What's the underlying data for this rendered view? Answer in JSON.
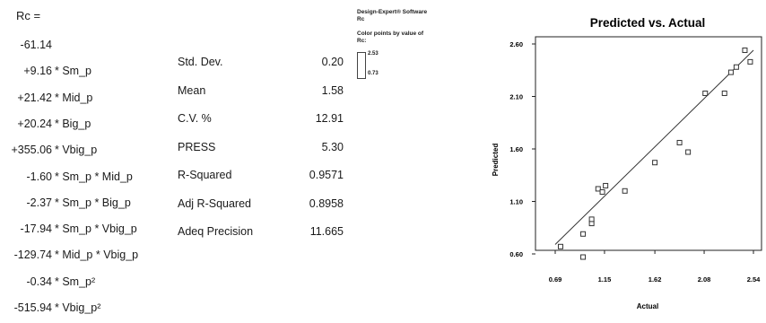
{
  "equation": {
    "lhs": "Rc  =",
    "terms": [
      {
        "coef": "-61.14",
        "term": ""
      },
      {
        "coef": "+9.16",
        "term": "* Sm_p"
      },
      {
        "coef": "+21.42",
        "term": "* Mid_p"
      },
      {
        "coef": "+20.24",
        "term": "* Big_p"
      },
      {
        "coef": "+355.06",
        "term": "* Vbig_p"
      },
      {
        "coef": "-1.60",
        "term": "* Sm_p * Mid_p"
      },
      {
        "coef": "-2.37",
        "term": "* Sm_p * Big_p"
      },
      {
        "coef": "-17.94",
        "term": "* Sm_p * Vbig_p"
      },
      {
        "coef": "-129.74",
        "term": "* Mid_p * Vbig_p"
      },
      {
        "coef": "-0.34",
        "term": "* Sm_p²"
      },
      {
        "coef": "-515.94",
        "term": "* Vbig_p²"
      }
    ]
  },
  "statistics": [
    {
      "label": "Std. Dev.",
      "value": "0.20"
    },
    {
      "label": "Mean",
      "value": "1.58"
    },
    {
      "label": "C.V. %",
      "value": "12.91"
    },
    {
      "label": "PRESS",
      "value": "5.30"
    },
    {
      "label": "R-Squared",
      "value": "0.9571"
    },
    {
      "label": "Adj R-Squared",
      "value": "0.8958"
    },
    {
      "label": "Adeq Precision",
      "value": "11.665"
    }
  ],
  "design_expert": {
    "software": "Design-Expert® Software",
    "response": "Rc",
    "color_note": "Color points by value of",
    "color_var": "Rc:",
    "legend_high": "2.53",
    "legend_low": "0.73"
  },
  "chart_data": {
    "type": "scatter",
    "title": "Predicted vs. Actual",
    "xlabel": "Actual",
    "ylabel": "Predicted",
    "x_ticks": [
      "0.69",
      "1.15",
      "1.62",
      "2.08",
      "2.54"
    ],
    "y_ticks": [
      "0.60",
      "1.10",
      "1.60",
      "2.10",
      "2.60"
    ],
    "xlim": [
      0.69,
      2.54
    ],
    "ylim": [
      0.6,
      2.6
    ],
    "points": [
      {
        "x": 0.74,
        "y": 0.67
      },
      {
        "x": 0.95,
        "y": 0.57
      },
      {
        "x": 0.95,
        "y": 0.79
      },
      {
        "x": 1.03,
        "y": 0.89
      },
      {
        "x": 1.03,
        "y": 0.93
      },
      {
        "x": 1.09,
        "y": 1.22
      },
      {
        "x": 1.13,
        "y": 1.19
      },
      {
        "x": 1.16,
        "y": 1.25
      },
      {
        "x": 1.34,
        "y": 1.2
      },
      {
        "x": 1.62,
        "y": 1.47
      },
      {
        "x": 1.85,
        "y": 1.66
      },
      {
        "x": 1.93,
        "y": 1.57
      },
      {
        "x": 2.09,
        "y": 2.13
      },
      {
        "x": 2.27,
        "y": 2.13
      },
      {
        "x": 2.33,
        "y": 2.33
      },
      {
        "x": 2.38,
        "y": 2.38
      },
      {
        "x": 2.46,
        "y": 2.54
      },
      {
        "x": 2.51,
        "y": 2.43
      }
    ],
    "fit_line": {
      "x": [
        0.69,
        2.54
      ],
      "y": [
        0.69,
        2.54
      ]
    },
    "grid": false,
    "point_color": "#ffffff",
    "point_edge": "#333333",
    "line_color": "#333333"
  }
}
